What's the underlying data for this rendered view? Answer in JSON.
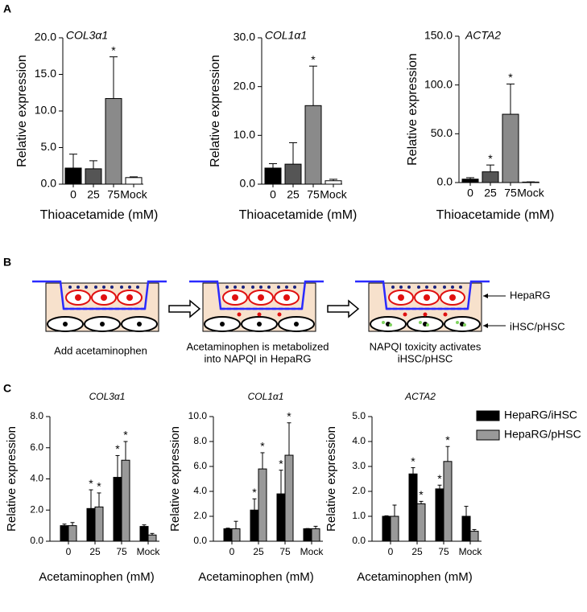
{
  "panels": [
    "A",
    "B",
    "C"
  ],
  "diagram": {
    "steps": [
      [
        "Add acetaminophen"
      ],
      [
        "Acetaminophen is metabolized",
        "into NAPQI in HepaRG"
      ],
      [
        "NAPQI toxicity activates",
        "iHSC/pHSC"
      ]
    ],
    "top_cells": "HepaRG",
    "bottom_cells": "iHSC/pHSC"
  },
  "chart_data": [
    {
      "type": "bar",
      "title": "COL3α1",
      "xlabel": "Thioacetamide (mM)",
      "ylabel": "Relative expression",
      "categories": [
        "0",
        "25",
        "75",
        "Mock"
      ],
      "ylim": [
        0,
        20
      ],
      "yticks": [
        {
          "value": 0,
          "label": "0.0"
        },
        {
          "value": 5,
          "label": "5.0"
        },
        {
          "value": 10,
          "label": "10.0"
        },
        {
          "value": 15,
          "label": "15.0"
        },
        {
          "value": 20,
          "label": "20.0"
        }
      ],
      "series": [
        {
          "colors": [
            "#000000",
            "#555555",
            "#8a8a8a",
            "#ffffff"
          ],
          "values": [
            2.2,
            2.1,
            11.7,
            0.9
          ],
          "errors": [
            1.9,
            1.1,
            5.7,
            0.1
          ],
          "significance": [
            null,
            null,
            "*",
            null
          ]
        }
      ]
    },
    {
      "type": "bar",
      "title": "COL1α1",
      "xlabel": "Thioacetamide (mM)",
      "ylabel": "Relative expression",
      "categories": [
        "0",
        "25",
        "75",
        "Mock"
      ],
      "ylim": [
        0,
        30
      ],
      "yticks": [
        {
          "value": 0,
          "label": "0.0"
        },
        {
          "value": 10,
          "label": "10.0"
        },
        {
          "value": 20,
          "label": "20.0"
        },
        {
          "value": 30,
          "label": "30.0"
        }
      ],
      "series": [
        {
          "colors": [
            "#000000",
            "#555555",
            "#8a8a8a",
            "#ffffff"
          ],
          "values": [
            3.3,
            4.1,
            16.1,
            0.7
          ],
          "errors": [
            0.9,
            4.4,
            8.1,
            0.3
          ],
          "significance": [
            null,
            null,
            "*",
            null
          ]
        }
      ]
    },
    {
      "type": "bar",
      "title": "ACTA2",
      "xlabel": "Thioacetamide (mM)",
      "ylabel": "Relative expression",
      "categories": [
        "0",
        "25",
        "75",
        "Mock"
      ],
      "ylim": [
        0,
        150
      ],
      "yticks": [
        {
          "value": 0,
          "label": "0.0"
        },
        {
          "value": 50,
          "label": "50.0"
        },
        {
          "value": 100,
          "label": "100.0"
        },
        {
          "value": 150,
          "label": "150.0"
        }
      ],
      "series": [
        {
          "colors": [
            "#000000",
            "#555555",
            "#8a8a8a",
            "#ffffff"
          ],
          "values": [
            3.5,
            11,
            70,
            0.5
          ],
          "errors": [
            1.5,
            7,
            31,
            0.2
          ],
          "significance": [
            null,
            "*",
            "*",
            null
          ]
        }
      ]
    },
    {
      "type": "bar",
      "title": "COL3α1",
      "xlabel": "Acetaminophen (mM)",
      "ylabel": "Relative expression",
      "categories": [
        "0",
        "25",
        "75",
        "Mock"
      ],
      "ylim": [
        0,
        8
      ],
      "yticks": [
        {
          "value": 0,
          "label": "0.0"
        },
        {
          "value": 2,
          "label": "2.0"
        },
        {
          "value": 4,
          "label": "4.0"
        },
        {
          "value": 6,
          "label": "6.0"
        },
        {
          "value": 8,
          "label": "8.0"
        }
      ],
      "series": [
        {
          "name": "HepaRG/iHSC",
          "color": "#000000",
          "values": [
            1.0,
            2.1,
            4.1,
            0.95
          ],
          "errors": [
            0.1,
            1.2,
            1.4,
            0.1
          ],
          "significance": [
            null,
            "*",
            "*",
            null
          ]
        },
        {
          "name": "HepaRG/pHSC",
          "color": "#999999",
          "values": [
            1.0,
            2.2,
            5.2,
            0.4
          ],
          "errors": [
            0.2,
            0.9,
            1.2,
            0.1
          ],
          "significance": [
            null,
            "*",
            "*",
            null
          ]
        }
      ]
    },
    {
      "type": "bar",
      "title": "COL1α1",
      "xlabel": "Acetaminophen (mM)",
      "ylabel": "Relative expression",
      "categories": [
        "0",
        "25",
        "75",
        "Mock"
      ],
      "ylim": [
        0,
        10
      ],
      "yticks": [
        {
          "value": 0,
          "label": "0.0"
        },
        {
          "value": 2,
          "label": "2.0"
        },
        {
          "value": 4,
          "label": "4.0"
        },
        {
          "value": 6,
          "label": "6.0"
        },
        {
          "value": 8,
          "label": "8.0"
        },
        {
          "value": 10,
          "label": "10.0"
        }
      ],
      "series": [
        {
          "name": "HepaRG/iHSC",
          "color": "#000000",
          "values": [
            1.0,
            2.5,
            3.8,
            1.0
          ],
          "errors": [
            0.05,
            0.9,
            1.9,
            0.02
          ],
          "significance": [
            null,
            "*",
            "*",
            null
          ]
        },
        {
          "name": "HepaRG/pHSC",
          "color": "#999999",
          "values": [
            1.0,
            5.8,
            6.9,
            1.0
          ],
          "errors": [
            0.6,
            1.3,
            2.6,
            0.2
          ],
          "significance": [
            null,
            "*",
            "*",
            null
          ]
        }
      ]
    },
    {
      "type": "bar",
      "title": "ACTA2",
      "xlabel": "Acetaminophen (mM)",
      "ylabel": "Relative expression",
      "categories": [
        "0",
        "25",
        "75",
        "Mock"
      ],
      "ylim": [
        0,
        5
      ],
      "yticks": [
        {
          "value": 0,
          "label": "0.0"
        },
        {
          "value": 1,
          "label": "1.0"
        },
        {
          "value": 2,
          "label": "2.0"
        },
        {
          "value": 3,
          "label": "3.0"
        },
        {
          "value": 4,
          "label": "4.0"
        },
        {
          "value": 5,
          "label": "5.0"
        }
      ],
      "legend": "right",
      "series": [
        {
          "name": "HepaRG/iHSC",
          "color": "#000000",
          "values": [
            1.0,
            2.7,
            2.1,
            1.0
          ],
          "errors": [
            0.02,
            0.25,
            0.15,
            0.4
          ],
          "significance": [
            null,
            "*",
            "*",
            null
          ]
        },
        {
          "name": "HepaRG/pHSC",
          "color": "#999999",
          "values": [
            1.0,
            1.5,
            3.2,
            0.4
          ],
          "errors": [
            0.45,
            0.1,
            0.6,
            0.07
          ],
          "significance": [
            null,
            "*",
            "*",
            null
          ]
        }
      ]
    }
  ]
}
